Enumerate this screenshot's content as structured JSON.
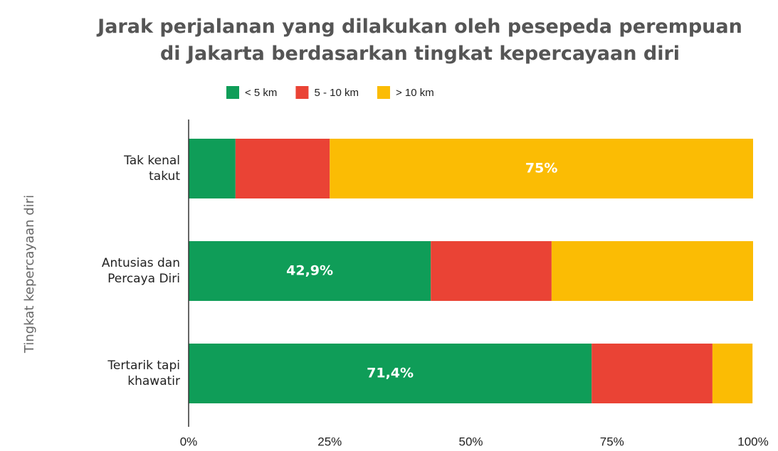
{
  "chart_data": {
    "type": "stacked-bar-horizontal",
    "title": "Jarak perjalanan yang dilakukan oleh pesepeda perempuan\ndi Jakarta berdasarkan tingkat kepercayaan diri",
    "y_label": "Tingkat kepercayaan diri",
    "categories": [
      "Tak kenal\ntakut",
      "Antusias dan\nPercaya Diri",
      "Tertarik tapi\nkhawatir"
    ],
    "series": [
      {
        "name": "< 5 km",
        "color": "#0f9d58",
        "values": [
          8.3,
          42.9,
          71.4
        ],
        "value_labels": [
          null,
          "42,9%",
          "71,4%"
        ]
      },
      {
        "name": "5 - 10 km",
        "color": "#ea4335",
        "values": [
          16.7,
          21.4,
          21.4
        ],
        "value_labels": [
          null,
          null,
          null
        ]
      },
      {
        "name": "> 10 km",
        "color": "#fbbc04",
        "values": [
          75,
          35.7,
          7.1
        ],
        "value_labels": [
          "75%",
          null,
          null
        ]
      }
    ],
    "xlim": [
      0,
      100
    ],
    "xticks": [
      {
        "value": 0,
        "label": "0%"
      },
      {
        "value": 25,
        "label": "25%"
      },
      {
        "value": 50,
        "label": "50%"
      },
      {
        "value": 75,
        "label": "75%"
      },
      {
        "value": 100,
        "label": "100%"
      }
    ],
    "legend": "top",
    "grid": false
  }
}
